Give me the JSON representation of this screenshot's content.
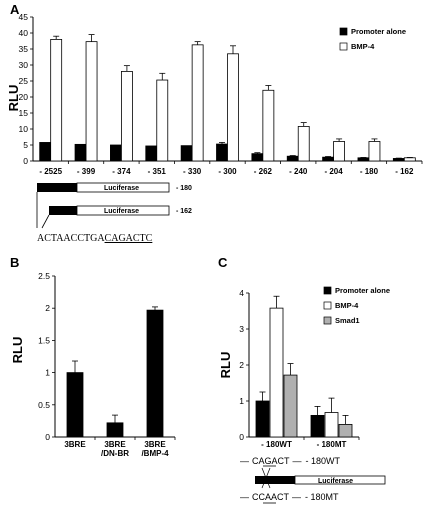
{
  "panels": {
    "A": {
      "letter": "A"
    },
    "B": {
      "letter": "B"
    },
    "C": {
      "letter": "C"
    }
  },
  "chart_data": [
    {
      "panel": "A",
      "type": "bar",
      "ylabel": "RLU",
      "ylim": [
        0,
        45
      ],
      "yticks": [
        0,
        5,
        10,
        15,
        20,
        25,
        30,
        35,
        40,
        45
      ],
      "categories": [
        "- 2525",
        "- 399",
        "- 374",
        "- 351",
        "- 330",
        "- 300",
        "- 262",
        "- 240",
        "- 204",
        "- 180",
        "- 162"
      ],
      "series": [
        {
          "name": "Promoter alone",
          "color": "#000000",
          "values": [
            5.8,
            5.2,
            5.0,
            4.7,
            4.8,
            5.3,
            2.3,
            1.5,
            1.2,
            1.0,
            0.8
          ],
          "errors": [
            0.0,
            0.0,
            0.0,
            0.0,
            0.0,
            0.5,
            0.3,
            0.2,
            0.2,
            0.1,
            0.1
          ]
        },
        {
          "name": "BMP-4",
          "color": "#ffffff",
          "values": [
            38.0,
            37.3,
            28.0,
            25.3,
            36.3,
            33.5,
            22.1,
            10.8,
            6.1,
            6.1,
            1.0
          ],
          "errors": [
            1.0,
            2.2,
            1.8,
            2.1,
            1.0,
            2.5,
            1.5,
            1.2,
            0.8,
            0.8,
            0.1
          ]
        }
      ],
      "legend_position": "top-right",
      "constructs": [
        {
          "label": "Luciferase",
          "tag": "- 180"
        },
        {
          "label": "Luciferase",
          "tag": "- 162"
        }
      ],
      "sequence": {
        "text": "ACTAACCTGACAGACTC",
        "underlined": "CAGACTC"
      }
    },
    {
      "panel": "B",
      "type": "bar",
      "ylabel": "RLU",
      "ylim": [
        0,
        2.5
      ],
      "yticks": [
        "0",
        "0.5",
        "1",
        "1.5",
        "2",
        "2.5"
      ],
      "categories": [
        "3BRE",
        "3BRE\n/DN-BR",
        "3BRE\n/BMP-4"
      ],
      "series": [
        {
          "name": "",
          "color": "#000000",
          "values": [
            1.0,
            0.22,
            1.97
          ],
          "errors": [
            0.18,
            0.12,
            0.05
          ]
        }
      ]
    },
    {
      "panel": "C",
      "type": "bar",
      "ylabel": "RLU",
      "ylim": [
        0,
        4
      ],
      "yticks": [
        0,
        1,
        2,
        3,
        4
      ],
      "categories": [
        "- 180WT",
        "- 180MT"
      ],
      "series": [
        {
          "name": "Promoter alone",
          "color": "#000000",
          "values": [
            1.0,
            0.6
          ],
          "errors": [
            0.25,
            0.25
          ]
        },
        {
          "name": "BMP-4",
          "color": "#ffffff",
          "values": [
            3.58,
            0.68
          ],
          "errors": [
            0.33,
            0.4
          ]
        },
        {
          "name": "Smad1",
          "color": "#b0b0b0",
          "values": [
            1.72,
            0.35
          ],
          "errors": [
            0.32,
            0.25
          ]
        }
      ],
      "legend_position": "top-right",
      "constructs": {
        "wt_seq": "CAGACT",
        "wt_label": "- 180WT",
        "mt_seq": "CCAACT",
        "mt_label": "- 180MT",
        "dash": "—",
        "luciferase": "Luciferase"
      }
    }
  ]
}
